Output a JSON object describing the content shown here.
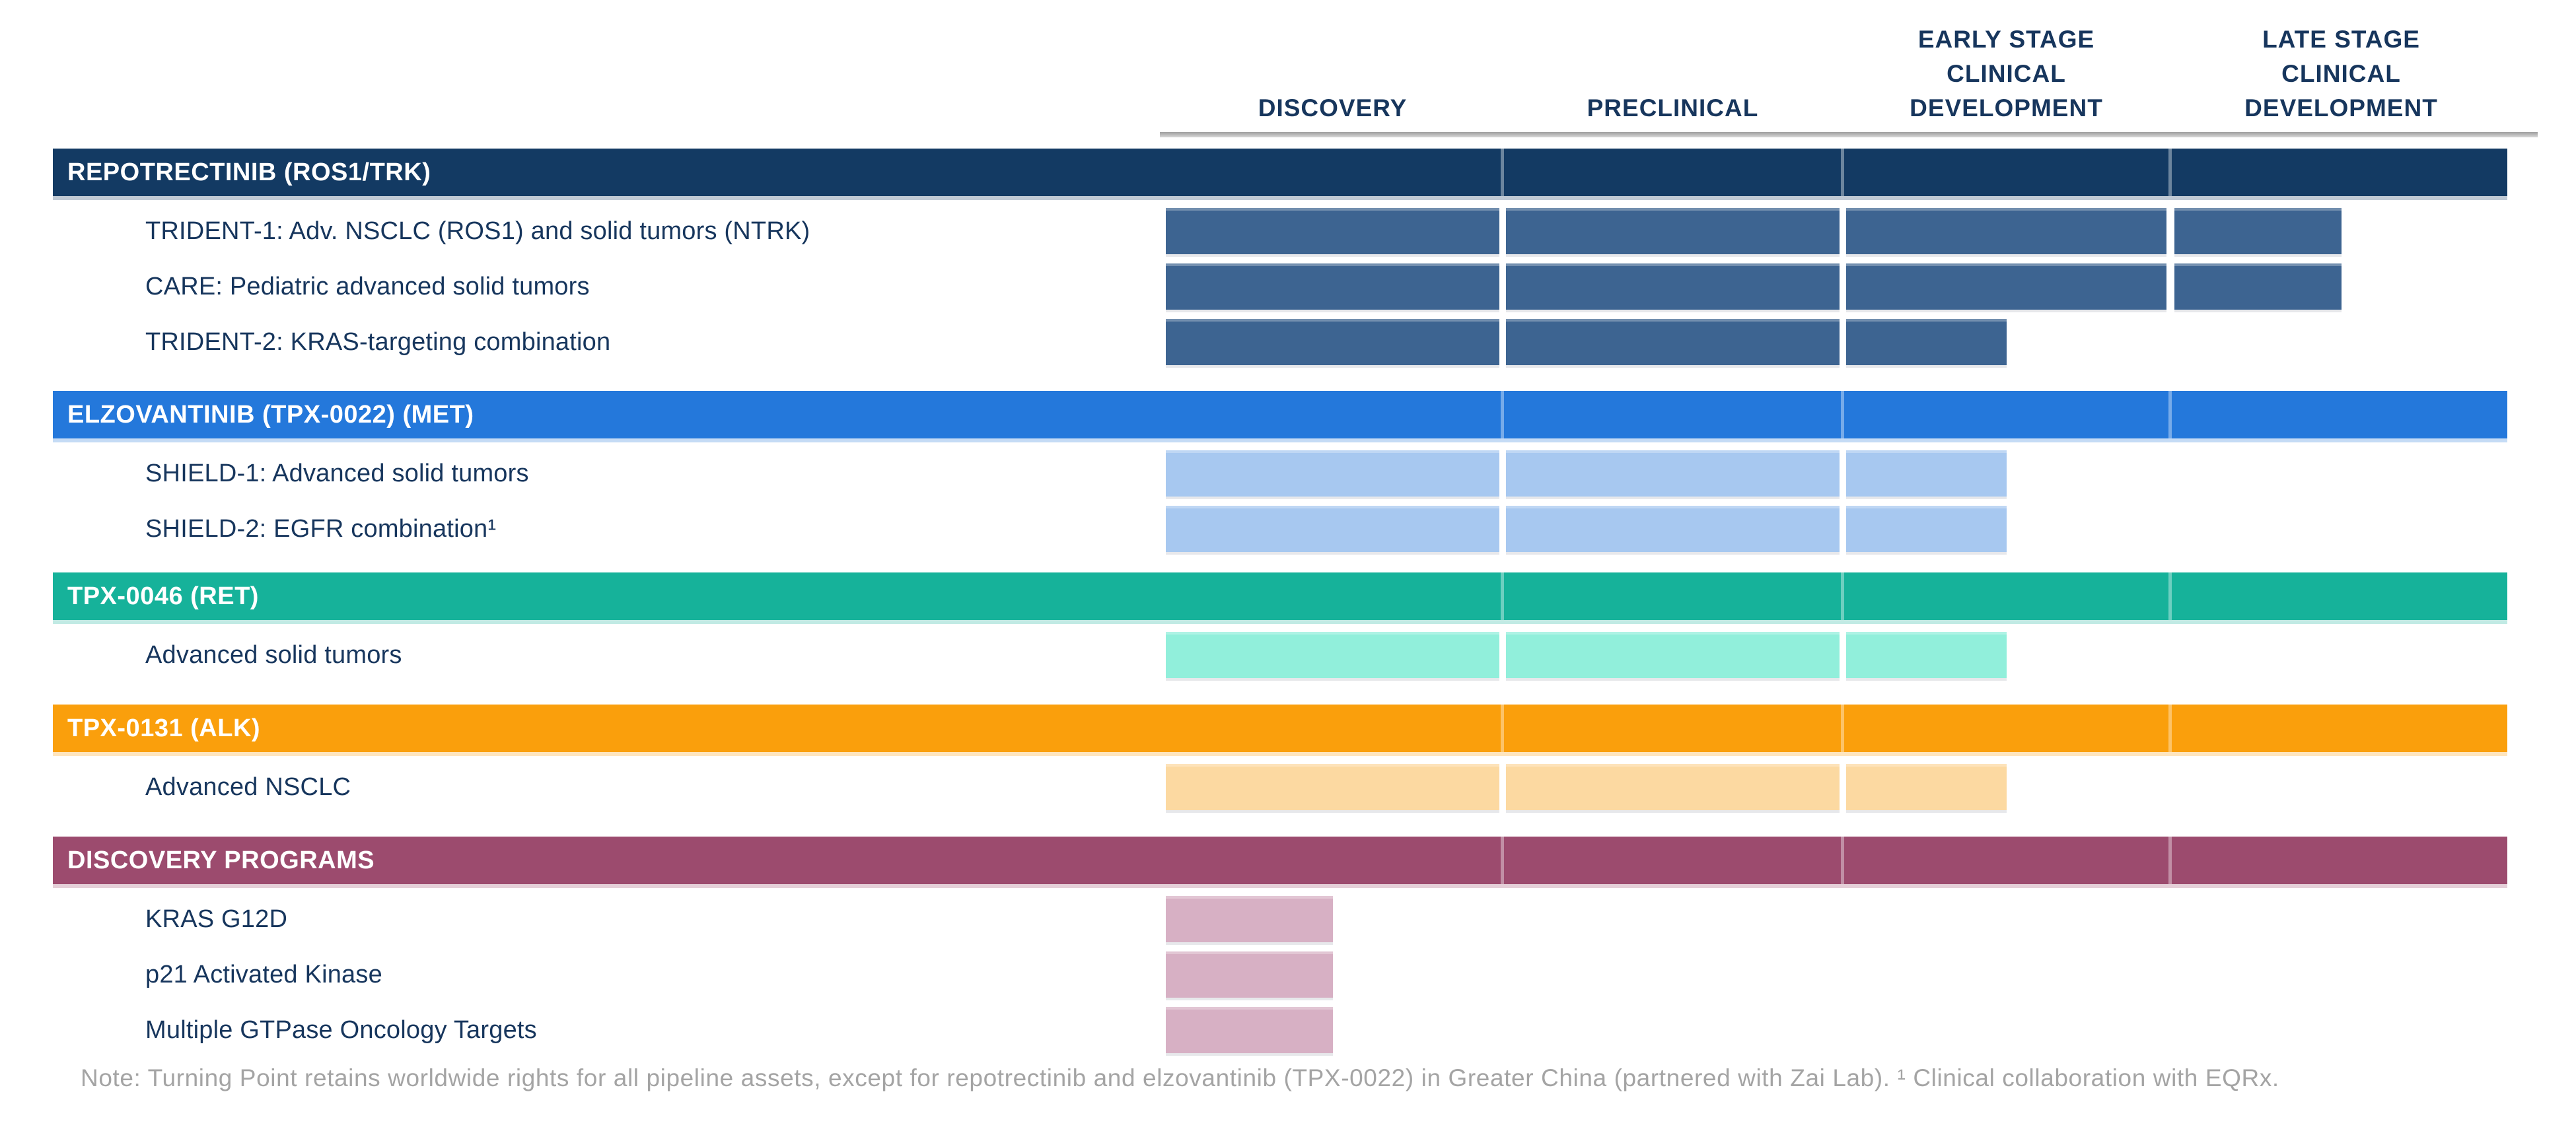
{
  "chart_data": {
    "type": "bar",
    "subtype": "pipeline-stage-chart",
    "columns": [
      {
        "lines": [
          "DISCOVERY"
        ]
      },
      {
        "lines": [
          "PRECLINICAL"
        ]
      },
      {
        "lines": [
          "EARLY STAGE",
          "CLINICAL",
          "DEVELOPMENT"
        ]
      },
      {
        "lines": [
          "LATE STAGE",
          "CLINICAL",
          "DEVELOPMENT"
        ]
      }
    ],
    "column_names": [
      "DISCOVERY",
      "PRECLINICAL",
      "EARLY STAGE CLINICAL DEVELOPMENT",
      "LATE STAGE CLINICAL DEVELOPMENT"
    ],
    "stage_scale_note": "stages array = fraction of each column the bar fills, in column order",
    "sections": [
      {
        "name": "REPOTRECTINIB (ROS1/TRK)",
        "header_color": "#133A63",
        "bar_color": "#3D6491",
        "rows": [
          {
            "label": "TRIDENT-1: Adv. NSCLC (ROS1) and solid tumors (NTRK)",
            "stages": [
              1,
              1,
              1,
              0.5
            ]
          },
          {
            "label": "CARE: Pediatric advanced solid tumors",
            "stages": [
              1,
              1,
              1,
              0.5
            ]
          },
          {
            "label": "TRIDENT-2: KRAS-targeting combination",
            "stages": [
              1,
              1,
              0.5,
              0
            ]
          }
        ]
      },
      {
        "name": "ELZOVANTINIB (TPX-0022) (MET)",
        "header_color": "#2478DB",
        "bar_color": "#A7C8F0",
        "rows": [
          {
            "label": "SHIELD-1: Advanced solid tumors",
            "stages": [
              1,
              1,
              0.5,
              0
            ]
          },
          {
            "label": "SHIELD-2: EGFR combination¹",
            "stages": [
              1,
              1,
              0.5,
              0
            ]
          }
        ]
      },
      {
        "name": "TPX-0046 (RET)",
        "header_color": "#16B29A",
        "bar_color": "#91EFDB",
        "rows": [
          {
            "label": "Advanced solid tumors",
            "stages": [
              1,
              1,
              0.5,
              0
            ]
          }
        ]
      },
      {
        "name": "TPX-0131 (ALK)",
        "header_color": "#FA9F0C",
        "bar_color": "#FCD9A1",
        "rows": [
          {
            "label": "Advanced NSCLC",
            "stages": [
              1,
              1,
              0.5,
              0
            ]
          }
        ]
      },
      {
        "name": "DISCOVERY PROGRAMS",
        "header_color": "#9C4B6E",
        "bar_color": "#D7B0C4",
        "rows": [
          {
            "label": "KRAS G12D",
            "stages": [
              0.5,
              0,
              0,
              0
            ]
          },
          {
            "label": "p21 Activated Kinase",
            "stages": [
              0.5,
              0,
              0,
              0
            ]
          },
          {
            "label": "Multiple GTPase Oncology Targets",
            "stages": [
              0.5,
              0,
              0,
              0
            ]
          }
        ]
      }
    ],
    "note": "Note: Turning Point retains worldwide rights for all pipeline assets, except for repotrectinib and elzovantinib (TPX-0022) in Greater China (partnered with Zai Lab). ¹ Clinical collaboration with EQRx.",
    "colors": {
      "column_header_text": "#17365D",
      "row_label_text": "#17365D",
      "note_text": "#A4A4A4",
      "header_rule": "#9E9E9E"
    },
    "legend_position": "none",
    "grid": "off"
  }
}
